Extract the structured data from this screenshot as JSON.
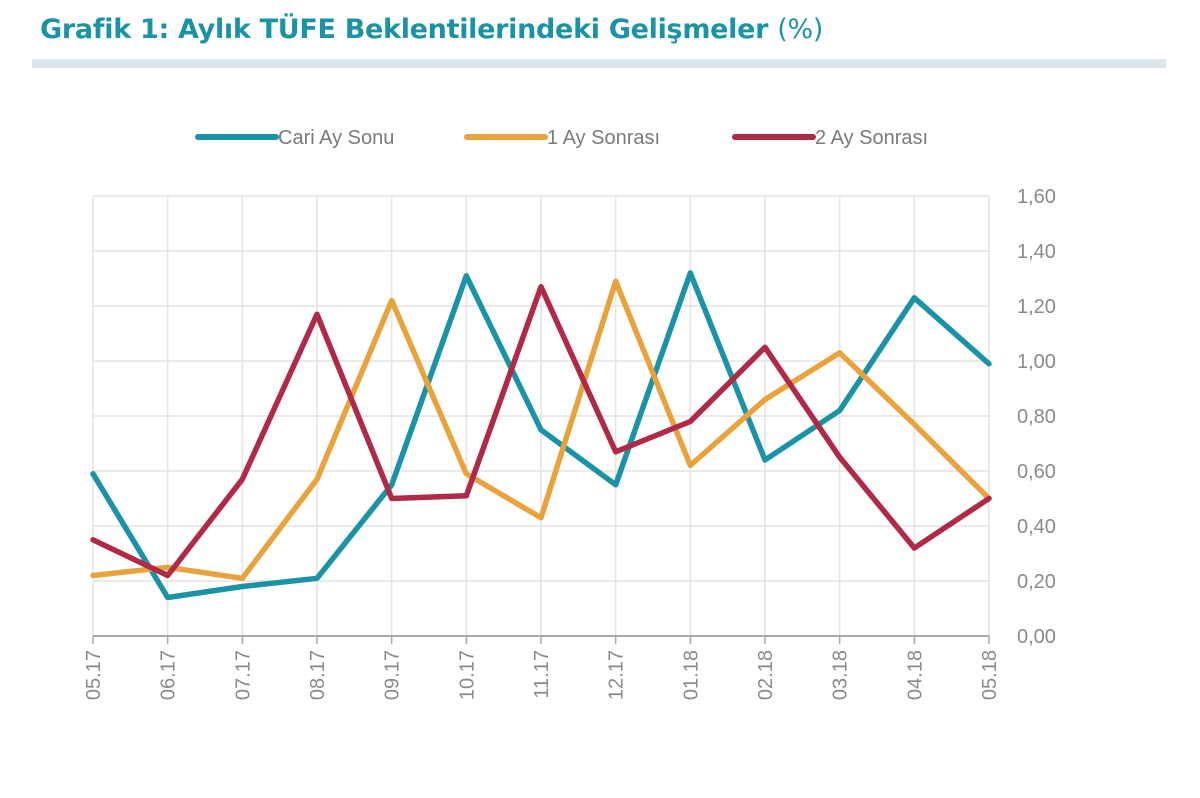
{
  "header": {
    "title": "Grafik 1: Aylık TÜFE Beklentilerindeki Gelişmeler",
    "unit": "(%)"
  },
  "chart_data": {
    "type": "line",
    "categories": [
      "05.17",
      "06.17",
      "07.17",
      "08.17",
      "09.17",
      "10.17",
      "11.17",
      "12.17",
      "01.18",
      "02.18",
      "03.18",
      "04.18",
      "05.18"
    ],
    "series": [
      {
        "name": "Cari Ay Sonu",
        "color": "#1a93a6",
        "values": [
          0.59,
          0.14,
          0.18,
          0.21,
          0.55,
          1.31,
          0.75,
          0.55,
          1.32,
          0.64,
          0.82,
          1.23,
          0.99
        ]
      },
      {
        "name": "1 Ay Sonrası",
        "color": "#e8a33d",
        "values": [
          0.22,
          0.25,
          0.21,
          0.57,
          1.22,
          0.59,
          0.43,
          1.29,
          0.62,
          0.86,
          1.03,
          0.77,
          0.5
        ]
      },
      {
        "name": "2 Ay Sonrası",
        "color": "#b02a48",
        "values": [
          0.35,
          0.22,
          0.57,
          1.17,
          0.5,
          0.51,
          1.27,
          0.67,
          0.78,
          1.05,
          0.65,
          0.32,
          0.5
        ]
      }
    ],
    "yticks": [
      "0,00",
      "0,20",
      "0,40",
      "0,60",
      "0,80",
      "1,00",
      "1,20",
      "1,40",
      "1,60"
    ],
    "ylim": [
      0,
      1.6
    ],
    "y_axis_side": "right",
    "grid": true,
    "legend_position": "top"
  }
}
